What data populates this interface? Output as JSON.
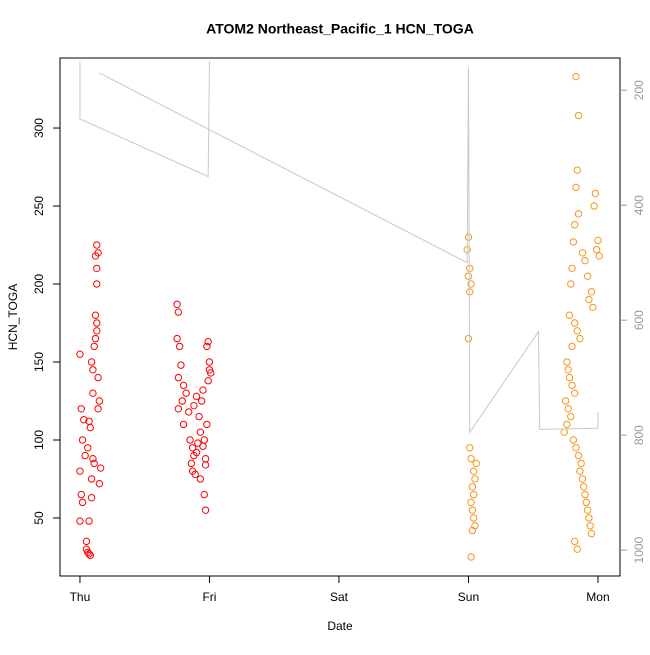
{
  "chart_data": {
    "type": "scatter",
    "title": "ATOM2 Northeast_Pacific_1 HCN_TOGA",
    "xlabel": "Date",
    "ylabel": "HCN_TOGA",
    "xlim": [
      -0.154,
      4.17
    ],
    "xticks": [
      {
        "value": 0,
        "label": "Thu"
      },
      {
        "value": 1,
        "label": "Fri"
      },
      {
        "value": 2,
        "label": "Sat"
      },
      {
        "value": 3,
        "label": "Sun"
      },
      {
        "value": 4,
        "label": "Mon"
      }
    ],
    "ylim": [
      12.8,
      344.9
    ],
    "yticks": [
      50,
      100,
      150,
      200,
      250,
      300
    ],
    "y2lim": [
      1045,
      144
    ],
    "y2ticks": [
      200,
      400,
      600,
      800,
      1000
    ],
    "series": [
      {
        "color": "#ff0000",
        "x": [
          0.0,
          0.01,
          0.0,
          0.02,
          0.01,
          0.02,
          0.0,
          0.03,
          0.04,
          0.05,
          0.05,
          0.06,
          0.07,
          0.08,
          0.07,
          0.09,
          0.09,
          0.1,
          0.1,
          0.11,
          0.08,
          0.07,
          0.06,
          0.1,
          0.09,
          0.11,
          0.12,
          0.13,
          0.13,
          0.12,
          0.13,
          0.13,
          0.12,
          0.13,
          0.14,
          0.14,
          0.15,
          0.14,
          0.15,
          0.16,
          0.75,
          0.76,
          0.75,
          0.77,
          0.78,
          0.76,
          0.8,
          0.82,
          0.79,
          0.76,
          0.84,
          0.8,
          0.85,
          0.87,
          0.88,
          0.86,
          0.87,
          0.89,
          0.9,
          0.91,
          0.93,
          0.92,
          0.94,
          0.95,
          0.9,
          0.88,
          0.97,
          0.93,
          0.96,
          0.97,
          0.98,
          0.99,
          1.0,
          1.01,
          0.99,
          0.96,
          0.95,
          0.97,
          0.98,
          1.0
        ],
        "values": [
          155,
          65,
          48,
          60,
          120,
          100,
          80,
          113,
          90,
          35,
          30,
          28,
          27,
          26,
          48,
          63,
          150,
          145,
          130,
          160,
          108,
          112,
          95,
          88,
          75,
          85,
          165,
          170,
          175,
          180,
          200,
          210,
          218,
          225,
          220,
          140,
          125,
          120,
          72,
          82,
          187,
          182,
          165,
          160,
          148,
          140,
          135,
          130,
          125,
          120,
          118,
          110,
          100,
          95,
          90,
          85,
          80,
          78,
          92,
          98,
          105,
          115,
          125,
          132,
          128,
          122,
          88,
          75,
          65,
          55,
          160,
          163,
          150,
          143,
          138,
          100,
          96,
          84,
          110,
          145
        ]
      },
      {
        "color": "#f5961e",
        "x": [
          3.0,
          2.99,
          3.01,
          3.0,
          3.02,
          3.01,
          3.0,
          3.01,
          3.02,
          3.04,
          3.05,
          3.03,
          3.04,
          3.02,
          3.03,
          3.04,
          3.05,
          3.03,
          3.02,
          3.06,
          3.83,
          3.85,
          3.84,
          3.83,
          3.85,
          3.82,
          3.81,
          3.88,
          3.9,
          3.8,
          3.92,
          3.79,
          3.95,
          3.93,
          3.96,
          3.78,
          3.82,
          3.84,
          3.86,
          3.8,
          3.76,
          3.77,
          3.78,
          3.8,
          3.82,
          3.75,
          3.77,
          3.79,
          3.76,
          3.74,
          3.81,
          3.83,
          3.85,
          3.87,
          3.86,
          3.88,
          3.89,
          3.9,
          3.91,
          3.92,
          3.93,
          3.94,
          3.95,
          3.82,
          3.84,
          3.97,
          3.98,
          4.0,
          3.99,
          4.01
        ],
        "values": [
          230,
          222,
          210,
          205,
          200,
          195,
          165,
          95,
          88,
          80,
          75,
          70,
          65,
          60,
          55,
          50,
          45,
          42,
          25,
          85,
          333,
          308,
          273,
          262,
          245,
          238,
          227,
          220,
          215,
          210,
          205,
          200,
          195,
          190,
          185,
          180,
          175,
          170,
          165,
          160,
          150,
          145,
          140,
          135,
          130,
          125,
          120,
          115,
          110,
          105,
          100,
          95,
          90,
          85,
          80,
          75,
          70,
          65,
          60,
          55,
          50,
          45,
          40,
          35,
          30,
          250,
          258,
          228,
          222,
          218
        ]
      },
      {
        "color": "#c8c8c8",
        "axis": "y2",
        "line": true,
        "x": [
          0.0,
          0.0,
          0.99,
          1.0,
          1.0,
          0.15,
          2.99,
          3.0,
          3.01,
          3.54,
          3.55,
          4.0,
          4.0
        ],
        "values": [
          150,
          250,
          350,
          150,
          null,
          170,
          500,
          160,
          795,
          620,
          790,
          788,
          760
        ]
      }
    ]
  }
}
